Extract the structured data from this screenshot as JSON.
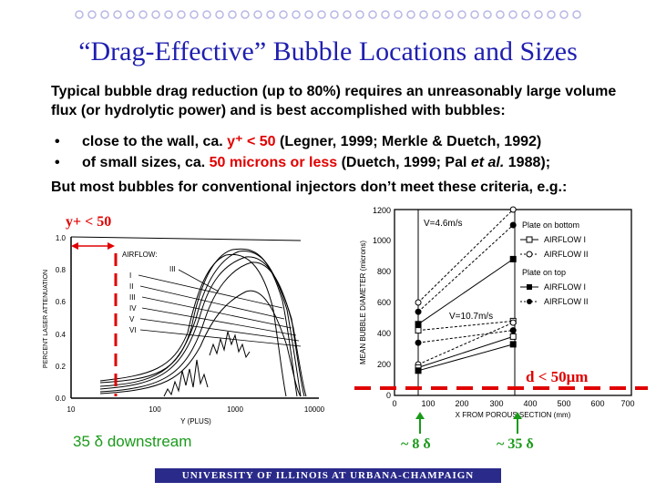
{
  "slide": {
    "title": "“Drag-Effective” Bubble Locations and Sizes",
    "intro": "Typical bubble drag reduction (up to 80%) requires an unreasonably large volume flux (or hydrolytic power) and is best accomplished with bubbles:",
    "bullets": [
      {
        "pre": "close to the wall, ca. ",
        "hl": "y⁺ < 50",
        "post": " (Legner, 1999; Merkle & Duetch, 1992)"
      },
      {
        "pre": "of small sizes, ca. ",
        "hl": "50 microns or less",
        "post": " (Duetch, 1999; Pal ",
        "em": "et al.",
        "post2": " 1988);"
      }
    ],
    "conclusion": "But most bubbles for conventional injectors don’t meet these criteria, e.g.:",
    "footer": "UNIVERSITY OF ILLINOIS AT URBANA-CHAMPAIGN",
    "colors": {
      "title": "#1f1fb0",
      "highlight": "#e00000",
      "green": "#1a9a1a",
      "footer_bg": "#2a2a8a"
    }
  },
  "left_chart": {
    "annotation": "y+ < 50",
    "caption": "35 δ downstream",
    "ylabel": "PERCENT LASER ATTENUATION",
    "xlabel": "Y (PLUS)",
    "yticks": [
      "0.0",
      "0.2",
      "0.4",
      "0.6",
      "0.8",
      "1.0"
    ],
    "xticks": [
      "10",
      "100",
      "1000",
      "10000"
    ],
    "legend_title": "AIRFLOW:",
    "legend": [
      "I",
      "II",
      "III",
      "IV",
      "V",
      "VI"
    ],
    "curve_label": "III"
  },
  "right_chart": {
    "ylabel": "MEAN BUBBLE DIAMETER (microns)",
    "xlabel": "X FROM POROUS SECTION (mm)",
    "yticks": [
      "0",
      "200",
      "400",
      "600",
      "800",
      "1000",
      "1200"
    ],
    "xticks": [
      "0",
      "100",
      "200",
      "300",
      "400",
      "500",
      "600",
      "700"
    ],
    "v_top": "V=4.6m/s",
    "v_bottom": "V=10.7m/s",
    "legend": {
      "group1": "Plate on bottom",
      "group1_items": [
        "AIRFLOW I",
        "AIRFLOW II"
      ],
      "group2": "Plate on top",
      "group2_items": [
        "AIRFLOW I",
        "AIRFLOW II"
      ]
    },
    "threshold_label": "d < 50μm",
    "marker_labels": [
      "~ 8 δ",
      "~ 35 δ"
    ]
  }
}
